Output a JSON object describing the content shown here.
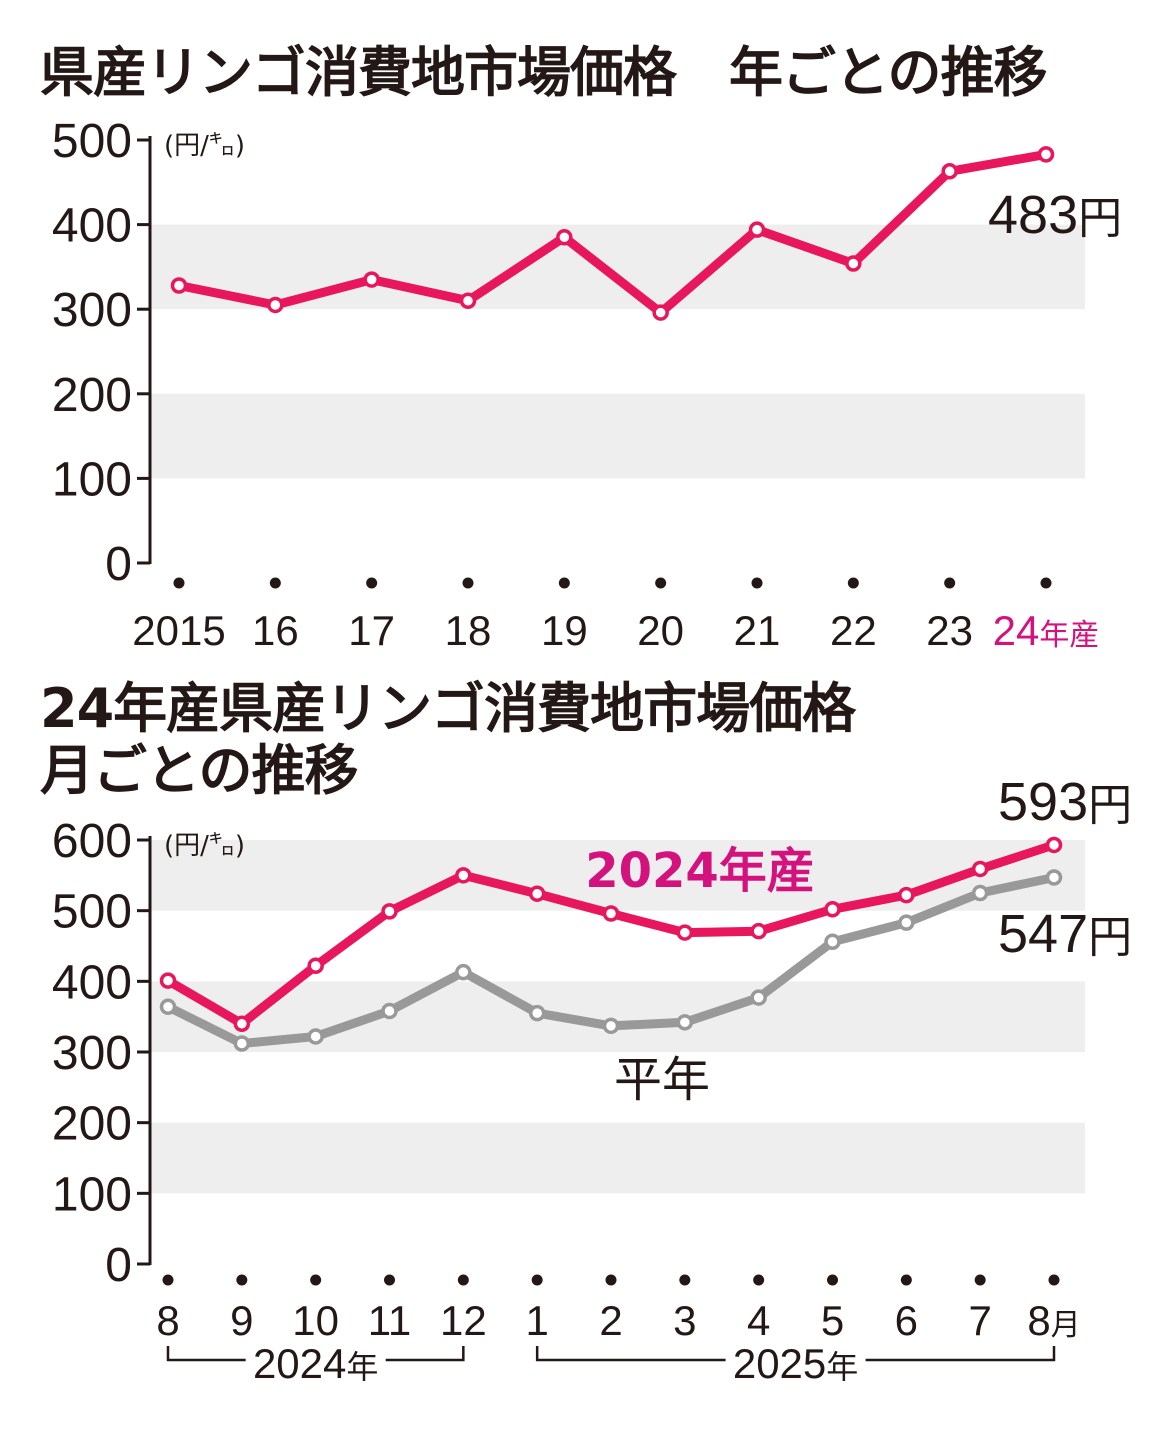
{
  "chart_data": [
    {
      "type": "line",
      "title": "県産リンゴ消費地市場価格　年ごとの推移",
      "unit_label": "(円/㌔)",
      "categories": [
        "2015",
        "16",
        "17",
        "18",
        "19",
        "20",
        "21",
        "22",
        "23",
        "24年産"
      ],
      "y_ticks": [
        "500",
        "400",
        "300",
        "200",
        "100",
        "0"
      ],
      "ylim": [
        0,
        500
      ],
      "grid": "alternating horizontal bands",
      "series": [
        {
          "values": [
            328,
            305,
            335,
            310,
            385,
            296,
            394,
            354,
            463,
            483
          ],
          "color": "#e8175d"
        }
      ],
      "end_label": "483円",
      "highlight_color": "#d4127e"
    },
    {
      "type": "line",
      "title_lines": [
        "24年産県産リンゴ消費地市場価格",
        "月ごとの推移"
      ],
      "unit_label": "(円/㌔)",
      "categories": [
        "8",
        "9",
        "10",
        "11",
        "12",
        "1",
        "2",
        "3",
        "4",
        "5",
        "6",
        "7",
        "8月"
      ],
      "y_ticks": [
        "600",
        "500",
        "400",
        "300",
        "200",
        "100",
        "0"
      ],
      "ylim": [
        0,
        600
      ],
      "grid": "alternating horizontal bands",
      "year_groups": [
        {
          "label": "2024年",
          "from": 0,
          "to": 4
        },
        {
          "label": "2025年",
          "from": 5,
          "to": 12
        }
      ],
      "series": [
        {
          "name": "2024年産",
          "values": [
            401,
            340,
            422,
            499,
            550,
            524,
            496,
            469,
            471,
            502,
            522,
            559,
            593
          ],
          "color": "#e8175d",
          "label_color": "#d4127e"
        },
        {
          "name": "平年",
          "values": [
            364,
            312,
            322,
            358,
            413,
            355,
            337,
            342,
            377,
            456,
            483,
            525,
            547
          ],
          "color": "#999999",
          "label_color": "#231815"
        }
      ],
      "end_labels": [
        "593円",
        "547円"
      ]
    }
  ]
}
